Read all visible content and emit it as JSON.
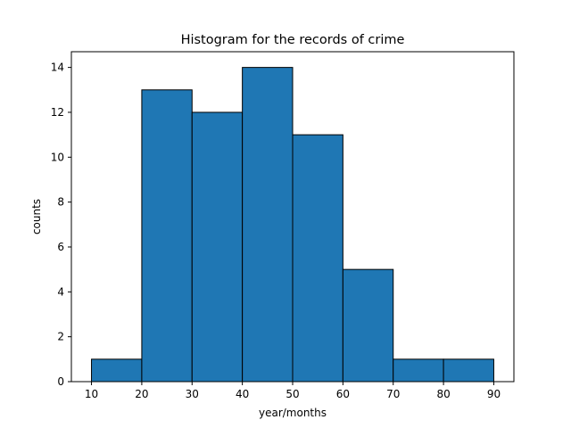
{
  "chart_data": {
    "type": "bar",
    "title": "Histogram for the records of crime",
    "xlabel": "year/months",
    "ylabel": "counts",
    "bins": [
      {
        "start": 10,
        "end": 20,
        "count": 1
      },
      {
        "start": 20,
        "end": 30,
        "count": 13
      },
      {
        "start": 30,
        "end": 40,
        "count": 12
      },
      {
        "start": 40,
        "end": 50,
        "count": 14
      },
      {
        "start": 50,
        "end": 60,
        "count": 11
      },
      {
        "start": 60,
        "end": 70,
        "count": 5
      },
      {
        "start": 70,
        "end": 80,
        "count": 1
      },
      {
        "start": 80,
        "end": 90,
        "count": 1
      }
    ],
    "xlim": [
      6,
      94
    ],
    "ylim": [
      0,
      14.7
    ],
    "xticks": [
      10,
      20,
      30,
      40,
      50,
      60,
      70,
      80,
      90
    ],
    "yticks": [
      0,
      2,
      4,
      6,
      8,
      10,
      12,
      14
    ],
    "grid": false,
    "colors": {
      "bar_fill": "#1f77b4",
      "bar_edge": "#000000",
      "axis": "#000000",
      "background": "#ffffff"
    }
  }
}
